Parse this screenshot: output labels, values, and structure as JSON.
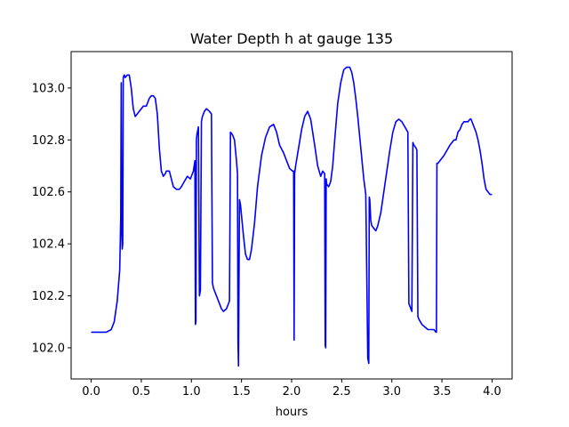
{
  "chart_data": {
    "type": "line",
    "title": "Water Depth h at gauge 135",
    "xlabel": "hours",
    "ylabel": "",
    "xlim": [
      -0.2,
      4.2
    ],
    "ylim": [
      101.88,
      103.14
    ],
    "xticks": [
      0.0,
      0.5,
      1.0,
      1.5,
      2.0,
      2.5,
      3.0,
      3.5,
      4.0
    ],
    "xtick_labels": [
      "0.0",
      "0.5",
      "1.0",
      "1.5",
      "2.0",
      "2.5",
      "3.0",
      "3.5",
      "4.0"
    ],
    "yticks": [
      102.0,
      102.2,
      102.4,
      102.6,
      102.8,
      103.0
    ],
    "ytick_labels": [
      "102.0",
      "102.2",
      "102.4",
      "102.6",
      "102.8",
      "103.0"
    ],
    "grid": false,
    "series": [
      {
        "color": "#0000ff",
        "x": [
          0.0,
          0.1,
          0.15,
          0.2,
          0.23,
          0.26,
          0.285,
          0.295,
          0.3,
          0.305,
          0.31,
          0.315,
          0.32,
          0.33,
          0.34,
          0.36,
          0.38,
          0.4,
          0.42,
          0.44,
          0.46,
          0.48,
          0.5,
          0.52,
          0.55,
          0.58,
          0.6,
          0.62,
          0.64,
          0.66,
          0.68,
          0.7,
          0.72,
          0.74,
          0.75,
          0.78,
          0.8,
          0.82,
          0.85,
          0.88,
          0.9,
          0.93,
          0.96,
          0.99,
          1.01,
          1.02,
          1.035,
          1.04,
          1.045,
          1.05,
          1.055,
          1.07,
          1.08,
          1.09,
          1.1,
          1.11,
          1.12,
          1.13,
          1.15,
          1.18,
          1.2,
          1.21,
          1.22,
          1.25,
          1.28,
          1.3,
          1.32,
          1.35,
          1.37,
          1.38,
          1.39,
          1.41,
          1.43,
          1.45,
          1.46,
          1.465,
          1.47,
          1.48,
          1.49,
          1.52,
          1.54,
          1.56,
          1.58,
          1.6,
          1.63,
          1.66,
          1.7,
          1.74,
          1.78,
          1.82,
          1.85,
          1.88,
          1.92,
          1.95,
          1.98,
          2.01,
          2.02,
          2.025,
          2.03,
          2.04,
          2.07,
          2.1,
          2.13,
          2.16,
          2.19,
          2.21,
          2.23,
          2.26,
          2.29,
          2.31,
          2.33,
          2.335,
          2.34,
          2.345,
          2.35,
          2.37,
          2.39,
          2.41,
          2.43,
          2.46,
          2.49,
          2.52,
          2.55,
          2.58,
          2.6,
          2.62,
          2.64,
          2.66,
          2.68,
          2.7,
          2.72,
          2.74,
          2.76,
          2.77,
          2.775,
          2.78,
          2.785,
          2.79,
          2.8,
          2.82,
          2.84,
          2.86,
          2.89,
          2.92,
          2.95,
          2.98,
          3.01,
          3.04,
          3.07,
          3.1,
          3.13,
          3.16,
          3.17,
          3.18,
          3.19,
          3.2,
          3.21,
          3.22,
          3.24,
          3.25,
          3.26,
          3.27,
          3.3,
          3.33,
          3.36,
          3.39,
          3.42,
          3.44,
          3.445,
          3.45,
          3.46,
          3.48,
          3.5,
          3.52,
          3.55,
          3.58,
          3.6,
          3.62,
          3.64,
          3.66,
          3.68,
          3.7,
          3.72,
          3.74,
          3.76,
          3.78,
          3.79,
          3.8,
          3.82,
          3.84,
          3.86,
          3.88,
          3.9,
          3.92,
          3.94,
          3.96,
          3.98,
          4.0
        ],
        "y": [
          102.06,
          102.06,
          102.06,
          102.07,
          102.1,
          102.18,
          102.3,
          102.5,
          103.02,
          102.45,
          102.38,
          102.4,
          103.04,
          103.05,
          103.04,
          103.05,
          103.05,
          103.0,
          102.92,
          102.89,
          102.9,
          102.91,
          102.92,
          102.93,
          102.93,
          102.96,
          102.97,
          102.97,
          102.96,
          102.9,
          102.77,
          102.68,
          102.66,
          102.67,
          102.68,
          102.68,
          102.65,
          102.62,
          102.61,
          102.61,
          102.62,
          102.64,
          102.66,
          102.65,
          102.67,
          102.68,
          102.72,
          102.09,
          102.1,
          102.8,
          102.82,
          102.85,
          102.2,
          102.22,
          102.87,
          102.89,
          102.9,
          102.91,
          102.92,
          102.91,
          102.9,
          102.25,
          102.23,
          102.2,
          102.17,
          102.15,
          102.14,
          102.15,
          102.17,
          102.18,
          102.83,
          102.82,
          102.8,
          102.72,
          102.67,
          102.02,
          101.93,
          102.57,
          102.55,
          102.43,
          102.36,
          102.34,
          102.34,
          102.38,
          102.48,
          102.62,
          102.74,
          102.81,
          102.85,
          102.86,
          102.83,
          102.78,
          102.75,
          102.72,
          102.69,
          102.68,
          102.68,
          102.03,
          102.67,
          102.7,
          102.77,
          102.84,
          102.89,
          102.91,
          102.88,
          102.83,
          102.78,
          102.7,
          102.66,
          102.68,
          102.67,
          102.01,
          102.0,
          102.65,
          102.63,
          102.62,
          102.64,
          102.7,
          102.8,
          102.94,
          103.02,
          103.07,
          103.08,
          103.08,
          103.06,
          103.02,
          102.96,
          102.89,
          102.81,
          102.73,
          102.65,
          102.59,
          101.96,
          101.94,
          102.58,
          102.57,
          102.53,
          102.49,
          102.47,
          102.46,
          102.45,
          102.47,
          102.52,
          102.6,
          102.68,
          102.76,
          102.83,
          102.87,
          102.88,
          102.87,
          102.85,
          102.83,
          102.17,
          102.16,
          102.15,
          102.14,
          102.79,
          102.78,
          102.77,
          102.76,
          102.12,
          102.11,
          102.09,
          102.08,
          102.07,
          102.07,
          102.07,
          102.06,
          102.06,
          102.71,
          102.71,
          102.72,
          102.73,
          102.74,
          102.76,
          102.78,
          102.79,
          102.8,
          102.8,
          102.83,
          102.84,
          102.86,
          102.87,
          102.87,
          102.87,
          102.88,
          102.88,
          102.87,
          102.85,
          102.83,
          102.8,
          102.76,
          102.71,
          102.65,
          102.61,
          102.6,
          102.59,
          102.59
        ]
      }
    ]
  }
}
